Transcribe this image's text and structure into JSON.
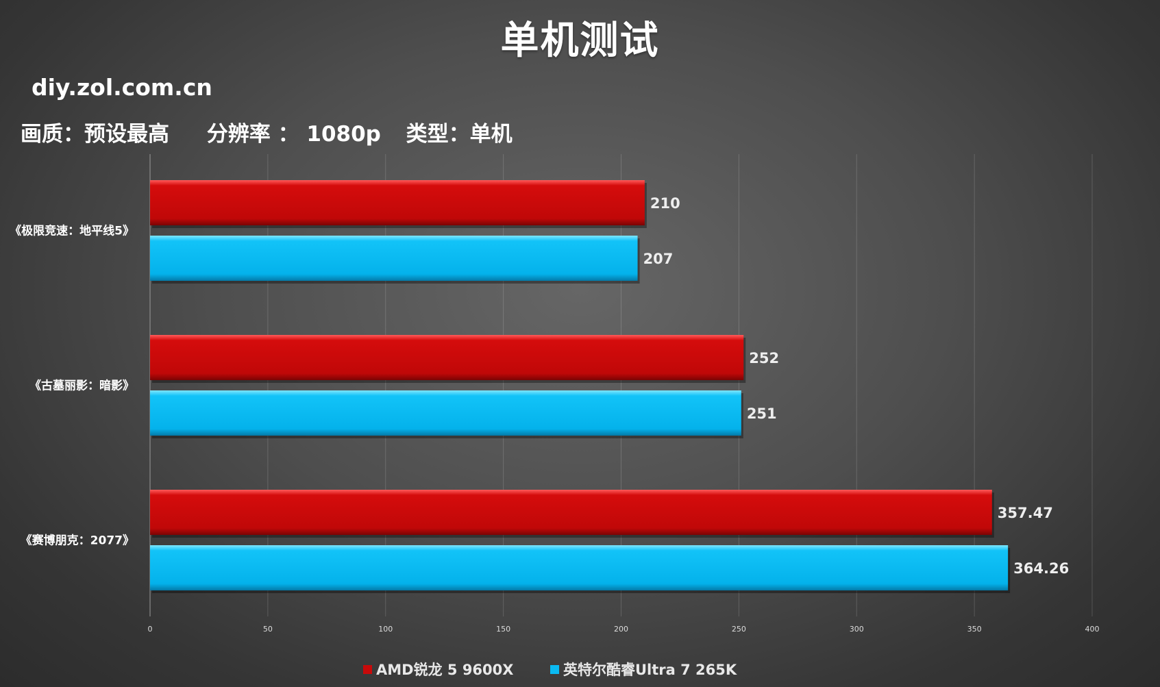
{
  "chart_data": {
    "type": "bar",
    "orientation": "horizontal",
    "title": "单机测试",
    "watermark": "diy.zol.com.cn",
    "settings": [
      "画质：预设最高",
      "分辨率 ： 1080p",
      "类型：单机"
    ],
    "categories": [
      "《极限竞速：地平线5》",
      "《古墓丽影：暗影》",
      "《赛博朋克：2077》"
    ],
    "series": [
      {
        "name": "AMD锐龙 5 9600X",
        "color": "#c80a0a",
        "values": [
          210,
          252,
          357.47
        ],
        "labels": [
          "210",
          "252",
          "357.47"
        ]
      },
      {
        "name": "英特尔酷睿Ultra 7 265K",
        "color": "#0abaf2",
        "values": [
          207,
          251,
          364.26
        ],
        "labels": [
          "207",
          "251",
          "364.26"
        ]
      }
    ],
    "xlim": [
      0,
      400
    ],
    "xticks": [
      "0",
      "50",
      "100",
      "150",
      "200",
      "250",
      "300",
      "350",
      "400"
    ],
    "grid": true,
    "legend_position": "bottom"
  }
}
